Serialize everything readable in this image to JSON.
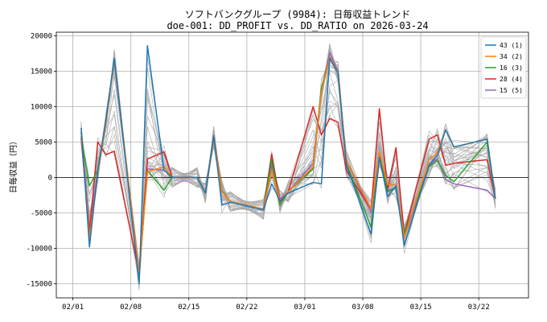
{
  "chart_data": {
    "type": "line",
    "title": "ソフトバンクグループ (9984): 日毎収益トレンド",
    "subtitle": "doe-001: DD_PROFIT vs. DD_RATIO on 2026-03-24",
    "xlabel": "",
    "ylabel": "日毎収益（円）",
    "ylim": [
      -17000,
      20500
    ],
    "xlim": [
      "2026-01-30",
      "2026-03-28"
    ],
    "yticks": [
      -15000,
      -10000,
      -5000,
      0,
      5000,
      10000,
      15000,
      20000
    ],
    "ytick_labels": [
      "-15000",
      "-10000",
      "-5000",
      "0",
      "5000",
      "10000",
      "15000",
      "20000"
    ],
    "xticks": [
      "2026-02-01",
      "2026-02-08",
      "2026-02-15",
      "2026-02-22",
      "2026-03-01",
      "2026-03-08",
      "2026-03-15",
      "2026-03-22"
    ],
    "xtick_labels": [
      "02/01",
      "02/08",
      "02/15",
      "02/22",
      "03/01",
      "03/08",
      "03/15",
      "03/22"
    ],
    "grid": true,
    "zero_line": true,
    "legend_position": "top-right",
    "x": [
      "2026-02-02",
      "2026-02-03",
      "2026-02-04",
      "2026-02-05",
      "2026-02-06",
      "2026-02-09",
      "2026-02-10",
      "2026-02-12",
      "2026-02-13",
      "2026-02-16",
      "2026-02-17",
      "2026-02-18",
      "2026-02-19",
      "2026-02-20",
      "2026-02-24",
      "2026-02-25",
      "2026-02-26",
      "2026-02-27",
      "2026-03-02",
      "2026-03-03",
      "2026-03-04",
      "2026-03-05",
      "2026-03-06",
      "2026-03-09",
      "2026-03-10",
      "2026-03-11",
      "2026-03-12",
      "2026-03-13",
      "2026-03-16",
      "2026-03-17",
      "2026-03-18",
      "2026-03-19",
      "2026-03-23",
      "2026-03-24"
    ],
    "series": [
      {
        "name": "43 (1)",
        "color": "#1f77b4",
        "values": [
          7000,
          -9800,
          800,
          8200,
          16800,
          -15000,
          18600,
          1000,
          0,
          0,
          -2200,
          5800,
          -3900,
          -3500,
          -4600,
          -900,
          -3300,
          -2200,
          -700,
          -900,
          16800,
          14800,
          1800,
          -8000,
          2800,
          -2700,
          -1200,
          -9600,
          1800,
          3100,
          6700,
          4300,
          5400,
          -3000
        ]
      },
      {
        "name": "34 (2)",
        "color": "#ff7f0e",
        "values": [
          6500,
          -8500,
          500,
          7800,
          16600,
          -13500,
          800,
          1500,
          0,
          0,
          -2200,
          5600,
          -2000,
          -3400,
          -4500,
          1000,
          -3300,
          -2000,
          1500,
          12000,
          17000,
          14900,
          2500,
          -4500,
          3500,
          -1000,
          -1000,
          -8500,
          2500,
          3500,
          6700,
          4300,
          5400,
          -3000
        ]
      },
      {
        "name": "16 (3)",
        "color": "#2ca02c",
        "values": [
          5800,
          -1200,
          1000,
          7900,
          16700,
          -13800,
          1000,
          -1800,
          0,
          0,
          -2200,
          5700,
          -1900,
          -3400,
          -4500,
          2500,
          -3900,
          -2000,
          1200,
          12500,
          17000,
          14900,
          2000,
          -7000,
          3100,
          -2000,
          -1500,
          -8000,
          1500,
          2400,
          300,
          -600,
          5000,
          -3000
        ]
      },
      {
        "name": "28 (4)",
        "color": "#d62728",
        "values": [
          5600,
          -7800,
          5000,
          3200,
          3700,
          -13600,
          2600,
          3600,
          0,
          0,
          -2200,
          5900,
          -1900,
          -3400,
          -4500,
          3300,
          -3500,
          -2000,
          10000,
          6000,
          8300,
          7800,
          1000,
          -4500,
          9700,
          -1800,
          4200,
          -8000,
          5400,
          6000,
          1700,
          2000,
          2500,
          -3000
        ]
      },
      {
        "name": "15 (5)",
        "color": "#9467bd",
        "values": [
          6300,
          -7000,
          700,
          8000,
          16600,
          -13700,
          1200,
          1000,
          0,
          0,
          -2200,
          5600,
          -1900,
          -3400,
          -4500,
          1700,
          -3000,
          -2000,
          2000,
          12300,
          17600,
          15000,
          2500,
          -5000,
          3000,
          -1800,
          -1500,
          -8500,
          1700,
          2700,
          -300,
          -900,
          -1800,
          -3000
        ]
      }
    ]
  }
}
